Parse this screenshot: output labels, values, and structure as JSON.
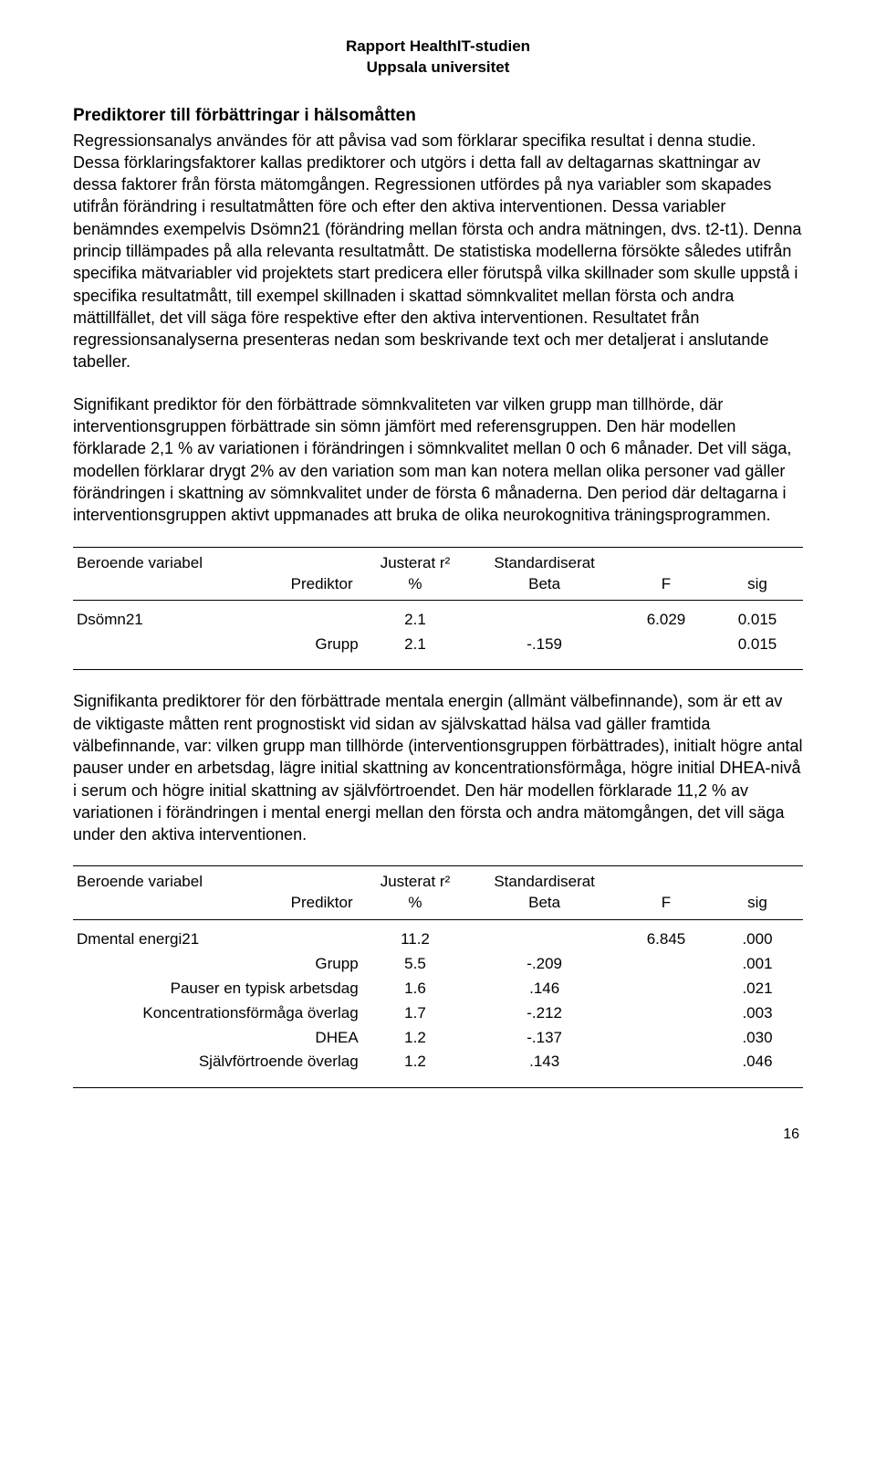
{
  "header": {
    "line1": "Rapport HealthIT-studien",
    "line2": "Uppsala universitet"
  },
  "section_title": "Prediktorer till förbättringar i hälsomåtten",
  "para1": "Regressionsanalys användes för att påvisa vad som förklarar specifika resultat i denna studie. Dessa förklaringsfaktorer kallas prediktorer och utgörs i detta fall av deltagarnas skattningar av dessa faktorer från första mätomgången. Regressionen utfördes på nya variabler som skapades utifrån förändring i resultatmåtten före och efter den aktiva interventionen. Dessa variabler benämndes exempelvis Dsömn21 (förändring mellan första och andra mätningen, dvs. t2-t1). Denna princip tillämpades på alla relevanta resultatmått. De statistiska modellerna försökte således utifrån specifika mätvariabler vid projektets start predicera eller förutspå vilka skillnader som skulle uppstå i specifika resultatmått, till exempel skillnaden i skattad sömnkvalitet mellan första och andra mättillfället, det vill säga före respektive efter den aktiva interventionen. Resultatet från regressionsanalyserna presenteras nedan som beskrivande text och mer detaljerat i anslutande tabeller.",
  "para2": "Signifikant prediktor för den förbättrade sömnkvaliteten var vilken grupp man tillhörde, där interventionsgruppen förbättrade sin sömn jämfört med referensgruppen. Den här modellen förklarade 2,1 % av variationen i förändringen i sömnkvalitet mellan 0 och 6 månader. Det vill säga, modellen förklarar drygt 2% av den variation som man kan notera mellan olika personer vad gäller förändringen i skattning av sömnkvalitet under de första 6 månaderna. Den period där deltagarna i interventionsgruppen aktivt uppmanades att bruka de olika neurokognitiva träningsprogrammen.",
  "table_headers": {
    "dv": "Beroende variabel",
    "pred_sub": "Prediktor",
    "r2_top": "Justerat r²",
    "r2_sub": "%",
    "beta_top": "Standardiserat",
    "beta_sub": "Beta",
    "f": "F",
    "sig": "sig"
  },
  "table1": {
    "dv_name": "Dsömn21",
    "dv_r2": "2.1",
    "dv_f": "6.029",
    "dv_sig": "0.015",
    "rows": [
      {
        "pred": "Grupp",
        "r2": "2.1",
        "beta": "-.159",
        "f": "",
        "sig": "0.015"
      }
    ]
  },
  "para3": "Signifikanta prediktorer för den förbättrade mentala energin (allmänt välbefinnande), som är ett av de viktigaste måtten rent prognostiskt vid sidan av självskattad hälsa vad gäller framtida välbefinnande, var: vilken grupp man tillhörde (interventionsgruppen förbättrades), initialt högre antal pauser under en arbetsdag, lägre initial skattning av koncentrationsförmåga, högre initial DHEA-nivå i serum och högre initial skattning av självförtroendet. Den här modellen förklarade 11,2 % av variationen i förändringen i mental energi mellan den första och andra mätomgången, det vill säga under den aktiva interventionen.",
  "table2": {
    "dv_name": "Dmental energi21",
    "dv_r2": "11.2",
    "dv_f": "6.845",
    "dv_sig": ".000",
    "rows": [
      {
        "pred": "Grupp",
        "r2": "5.5",
        "beta": "-.209",
        "f": "",
        "sig": ".001"
      },
      {
        "pred": "Pauser en typisk arbetsdag",
        "r2": "1.6",
        "beta": ".146",
        "f": "",
        "sig": ".021"
      },
      {
        "pred": "Koncentrationsförmåga överlag",
        "r2": "1.7",
        "beta": "-.212",
        "f": "",
        "sig": ".003"
      },
      {
        "pred": "DHEA",
        "r2": "1.2",
        "beta": "-.137",
        "f": "",
        "sig": ".030"
      },
      {
        "pred": "Självförtroende överlag",
        "r2": "1.2",
        "beta": ".143",
        "f": "",
        "sig": ".046"
      }
    ]
  },
  "page_number": "16"
}
